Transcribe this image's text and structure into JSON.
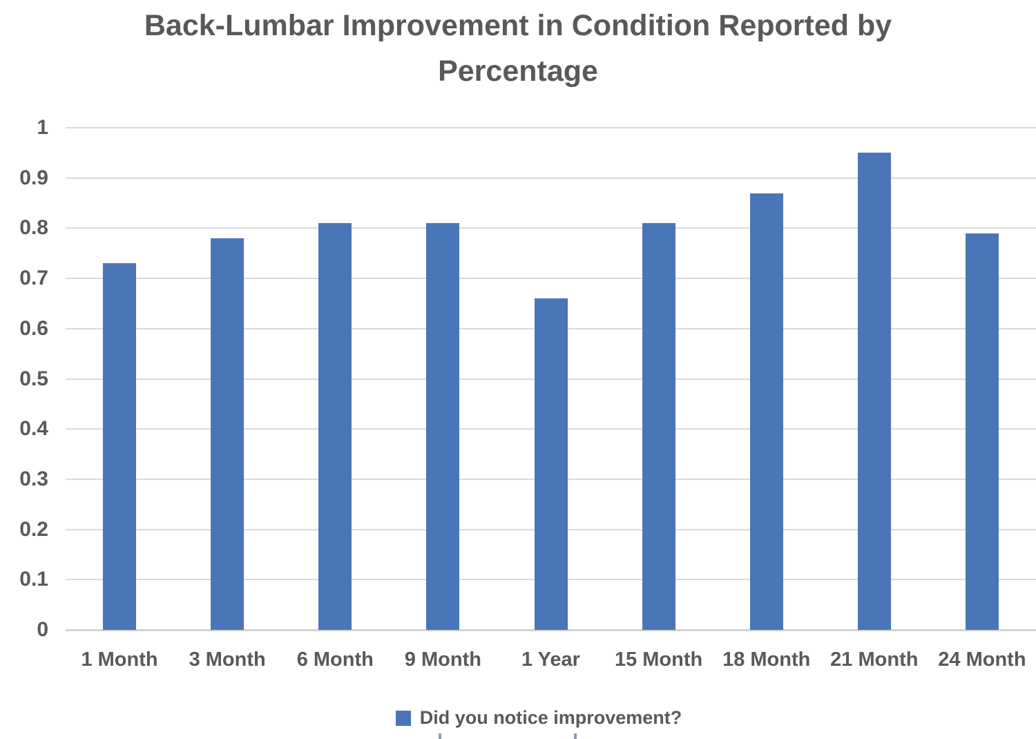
{
  "chart_data": {
    "type": "bar",
    "title": "Back-Lumbar Improvement in Condition Reported by Percentage",
    "categories": [
      "1 Month",
      "3 Month",
      "6 Month",
      "9 Month",
      "1 Year",
      "15 Month",
      "18 Month",
      "21 Month",
      "24 Month"
    ],
    "series": [
      {
        "name": "Did you notice improvement?",
        "values": [
          0.73,
          0.78,
          0.81,
          0.81,
          0.66,
          0.81,
          0.87,
          0.95,
          0.79
        ]
      }
    ],
    "xlabel": "",
    "ylabel": "",
    "ylim": [
      0,
      1
    ],
    "yticks": [
      0,
      0.1,
      0.2,
      0.3,
      0.4,
      0.5,
      0.6,
      0.7,
      0.8,
      0.9,
      1
    ],
    "ytick_labels": [
      "0",
      "0.1",
      "0.2",
      "0.3",
      "0.4",
      "0.5",
      "0.6",
      "0.7",
      "0.8",
      "0.9",
      "1"
    ],
    "grid": true,
    "legend_position": "bottom",
    "colors": {
      "bar": "#4a76b9",
      "gridline": "#dbdbdb",
      "text": "#595959"
    }
  }
}
